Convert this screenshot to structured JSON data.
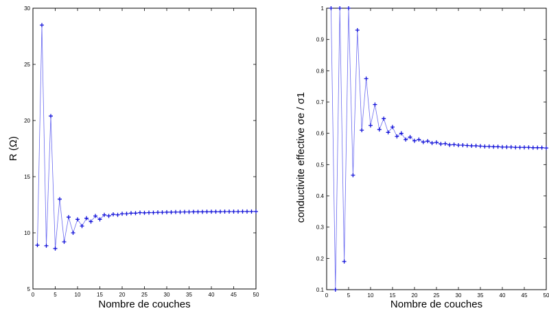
{
  "chart_data": [
    {
      "type": "line",
      "title": "",
      "xlabel": "Nombre de couches",
      "ylabel": "R (Ω)",
      "xlim": [
        0,
        50
      ],
      "ylim": [
        5,
        30
      ],
      "xticks": [
        0,
        5,
        10,
        15,
        20,
        25,
        30,
        35,
        40,
        45,
        50
      ],
      "yticks": [
        5,
        10,
        15,
        20,
        25,
        30
      ],
      "grid": false,
      "line_color": "#6a6af0",
      "marker_color": "#1010d8",
      "marker": "+",
      "series": [
        {
          "x": [
            1,
            2,
            3,
            4,
            5,
            6,
            7,
            8,
            9,
            10,
            11,
            12,
            13,
            14,
            15,
            16,
            17,
            18,
            19,
            20,
            21,
            22,
            23,
            24,
            25,
            26,
            27,
            28,
            29,
            30,
            31,
            32,
            33,
            34,
            35,
            36,
            37,
            38,
            39,
            40,
            41,
            42,
            43,
            44,
            45,
            46,
            47,
            48,
            49,
            50
          ],
          "y": [
            8.9,
            28.5,
            8.85,
            20.4,
            8.6,
            13.0,
            9.2,
            11.4,
            10.0,
            11.2,
            10.6,
            11.3,
            11.0,
            11.5,
            11.2,
            11.6,
            11.5,
            11.65,
            11.6,
            11.7,
            11.7,
            11.75,
            11.75,
            11.8,
            11.78,
            11.8,
            11.8,
            11.82,
            11.82,
            11.84,
            11.84,
            11.85,
            11.85,
            11.86,
            11.86,
            11.87,
            11.87,
            11.87,
            11.88,
            11.88,
            11.88,
            11.88,
            11.89,
            11.89,
            11.89,
            11.89,
            11.9,
            11.9,
            11.9,
            11.9
          ]
        }
      ]
    },
    {
      "type": "line",
      "title": "",
      "xlabel": "Nombre de couches",
      "ylabel": "conductivite effective σe / σ1",
      "xlim": [
        0,
        50
      ],
      "ylim": [
        0.1,
        1
      ],
      "xticks": [
        0,
        5,
        10,
        15,
        20,
        25,
        30,
        35,
        40,
        45,
        50
      ],
      "yticks": [
        0.1,
        0.2,
        0.3,
        0.4,
        0.5,
        0.6,
        0.7,
        0.8,
        0.9,
        1
      ],
      "grid": false,
      "line_color": "#6a6af0",
      "marker_color": "#1010d8",
      "marker": "+",
      "series": [
        {
          "x": [
            1,
            2,
            3,
            4,
            5,
            6,
            7,
            8,
            9,
            10,
            11,
            12,
            13,
            14,
            15,
            16,
            17,
            18,
            19,
            20,
            21,
            22,
            23,
            24,
            25,
            26,
            27,
            28,
            29,
            30,
            31,
            32,
            33,
            34,
            35,
            36,
            37,
            38,
            39,
            40,
            41,
            42,
            43,
            44,
            45,
            46,
            47,
            48,
            49,
            50
          ],
          "y": [
            1.0,
            0.1,
            1.0,
            0.19,
            1.0,
            0.466,
            0.93,
            0.61,
            0.775,
            0.625,
            0.692,
            0.612,
            0.647,
            0.603,
            0.62,
            0.59,
            0.6,
            0.58,
            0.588,
            0.576,
            0.58,
            0.572,
            0.575,
            0.569,
            0.571,
            0.566,
            0.567,
            0.563,
            0.564,
            0.562,
            0.562,
            0.561,
            0.56,
            0.56,
            0.559,
            0.558,
            0.558,
            0.557,
            0.557,
            0.556,
            0.556,
            0.556,
            0.555,
            0.555,
            0.555,
            0.555,
            0.554,
            0.554,
            0.554,
            0.553
          ]
        }
      ]
    }
  ]
}
